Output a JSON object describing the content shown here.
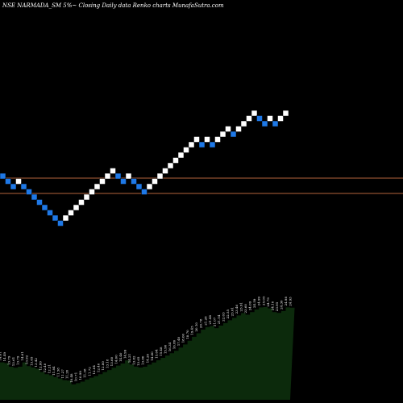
{
  "title": "NSE NARMADA_SM 5%~  Closing Daily data  Renko  charts MunafaSutra.com",
  "colors": {
    "background": "#000000",
    "up_brick": "#ffffff",
    "down_brick": "#1e78e6",
    "brick_border": "#000000",
    "level_line": "#b4643c",
    "volume_fill": "#0c2a0c",
    "volume_text": "#ffffff"
  },
  "chart_data": [
    {
      "type": "renko",
      "title": "NSE NARMADA_SM 5%~  Closing Daily data  Renko  charts MunafaSutra.com",
      "brick_size_pct": 5,
      "price_range": [
        0,
        24
      ],
      "levels": [
        14,
        12.5
      ],
      "bricks": [
        {
          "level": 15,
          "dir": "down"
        },
        {
          "level": 14,
          "dir": "down"
        },
        {
          "level": 13,
          "dir": "down"
        },
        {
          "level": 14,
          "dir": "up"
        },
        {
          "level": 13,
          "dir": "down"
        },
        {
          "level": 12,
          "dir": "down"
        },
        {
          "level": 11,
          "dir": "down"
        },
        {
          "level": 10,
          "dir": "down"
        },
        {
          "level": 9,
          "dir": "down"
        },
        {
          "level": 8,
          "dir": "down"
        },
        {
          "level": 7,
          "dir": "down"
        },
        {
          "level": 6,
          "dir": "down"
        },
        {
          "level": 7,
          "dir": "up"
        },
        {
          "level": 8,
          "dir": "up"
        },
        {
          "level": 9,
          "dir": "up"
        },
        {
          "level": 10,
          "dir": "up"
        },
        {
          "level": 11,
          "dir": "up"
        },
        {
          "level": 12,
          "dir": "up"
        },
        {
          "level": 13,
          "dir": "up"
        },
        {
          "level": 14,
          "dir": "up"
        },
        {
          "level": 15,
          "dir": "up"
        },
        {
          "level": 16,
          "dir": "up"
        },
        {
          "level": 15,
          "dir": "down"
        },
        {
          "level": 14,
          "dir": "down"
        },
        {
          "level": 15,
          "dir": "up"
        },
        {
          "level": 14,
          "dir": "down"
        },
        {
          "level": 13,
          "dir": "down"
        },
        {
          "level": 12,
          "dir": "down"
        },
        {
          "level": 13,
          "dir": "up"
        },
        {
          "level": 14,
          "dir": "up"
        },
        {
          "level": 15,
          "dir": "up"
        },
        {
          "level": 16,
          "dir": "up"
        },
        {
          "level": 17,
          "dir": "up"
        },
        {
          "level": 18,
          "dir": "up"
        },
        {
          "level": 19,
          "dir": "up"
        },
        {
          "level": 20,
          "dir": "up"
        },
        {
          "level": 21,
          "dir": "up"
        },
        {
          "level": 22,
          "dir": "up"
        },
        {
          "level": 21,
          "dir": "down"
        },
        {
          "level": 22,
          "dir": "up"
        },
        {
          "level": 21,
          "dir": "down"
        },
        {
          "level": 22,
          "dir": "up"
        },
        {
          "level": 23,
          "dir": "up"
        },
        {
          "level": 24,
          "dir": "up"
        },
        {
          "level": 23,
          "dir": "down"
        },
        {
          "level": 24,
          "dir": "up"
        },
        {
          "level": 25,
          "dir": "up"
        },
        {
          "level": 26,
          "dir": "up"
        },
        {
          "level": 27,
          "dir": "up"
        },
        {
          "level": 26,
          "dir": "down"
        },
        {
          "level": 25,
          "dir": "down"
        },
        {
          "level": 26,
          "dir": "up"
        },
        {
          "level": 25,
          "dir": "down"
        },
        {
          "level": 26,
          "dir": "up"
        },
        {
          "level": 27,
          "dir": "up"
        }
      ]
    },
    {
      "type": "area",
      "series_labels": [
        "14.61",
        "14.49",
        "13.79",
        "13.61",
        "13.79",
        "14.61",
        "13.92",
        "13.65",
        "13.42",
        "12.80",
        "12.40",
        "12.21",
        "11.84",
        "11.58",
        "11.27",
        "11.20",
        "10.48",
        "10.71",
        "10.99",
        "11.38",
        "11.72",
        "12.04",
        "12.40",
        "12.80",
        "13.18",
        "13.60",
        "14.00",
        "14.40",
        "14.99",
        "14.21",
        "13.82",
        "13.65",
        "13.80",
        "14.20",
        "14.60",
        "15.04",
        "15.48",
        "15.90",
        "16.34",
        "16.80",
        "17.40",
        "18.00",
        "18.70",
        "19.45",
        "20.10",
        "20.78",
        "21.28",
        "21.48",
        "21.07",
        "21.54",
        "22.03",
        "22.55",
        "23.01",
        "23.46",
        "23.91",
        "23.60",
        "24.09",
        "24.59",
        "24.99",
        "25.05",
        "24.79",
        "24.10",
        "23.95",
        "24.30",
        "24.98",
        "24.93"
      ]
    }
  ]
}
